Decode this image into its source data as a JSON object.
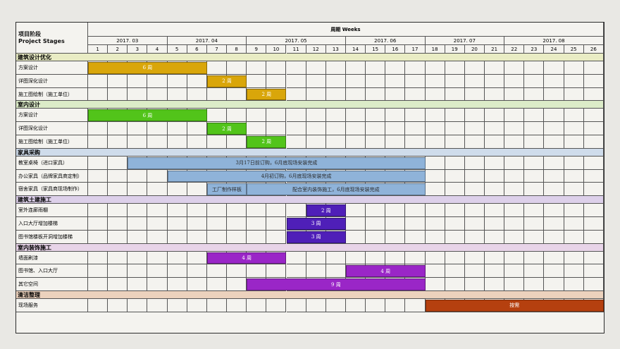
{
  "header": {
    "stage_cn": "项目阶段",
    "stage_en": "Project Stages",
    "period": "周期 Weeks",
    "months": [
      {
        "label": "2017. 03",
        "weeks": 4
      },
      {
        "label": "2017. 04",
        "weeks": 4
      },
      {
        "label": "2017. 05",
        "weeks": 5
      },
      {
        "label": "2017. 06",
        "weeks": 4
      },
      {
        "label": "2017. 07",
        "weeks": 4
      },
      {
        "label": "2017. 08",
        "weeks": 5
      }
    ],
    "week_count": 26
  },
  "colors": {
    "design": "#d9a60a",
    "interior_design": "#52c41a",
    "furniture": "#8fb3d9",
    "civil": "#4f1fb8",
    "decoration": "#9a26c7",
    "cleaning": "#b5400f",
    "sec_design": "#e9ecc4",
    "sec_interior": "#dcecc8",
    "sec_furniture": "#cfdceb",
    "sec_civil": "#ddd0ea",
    "sec_decoration": "#e8d4e8",
    "sec_cleaning": "#ecd2bd"
  },
  "chart_data": {
    "type": "gantt",
    "x_unit": "week",
    "sections": [
      {
        "name": "建筑设计优化",
        "bg": "sec_design",
        "tasks": [
          {
            "name": "方案设计",
            "start": 1,
            "end": 6,
            "label": "6 周",
            "color": "design"
          },
          {
            "name": "详图深化设计",
            "start": 7,
            "end": 8,
            "label": "2 周",
            "color": "design"
          },
          {
            "name": "施工图绘制（施工单位）",
            "start": 9,
            "end": 10,
            "label": "2 周",
            "color": "design"
          }
        ]
      },
      {
        "name": "室内设计",
        "bg": "sec_interior",
        "tasks": [
          {
            "name": "方案设计",
            "start": 1,
            "end": 6,
            "label": "6 周",
            "color": "interior_design"
          },
          {
            "name": "详图深化设计",
            "start": 7,
            "end": 8,
            "label": "2 周",
            "color": "interior_design"
          },
          {
            "name": "施工图绘制（施工单位）",
            "start": 9,
            "end": 10,
            "label": "2 周",
            "color": "interior_design"
          }
        ]
      },
      {
        "name": "家具采购",
        "bg": "sec_furniture",
        "tasks": [
          {
            "name": "教室桌椅（进口家具）",
            "start": 3,
            "end": 17,
            "label": "3月17日前订购，6月底现场安装完成",
            "color": "furniture"
          },
          {
            "name": "办公家具（品牌家具商定制）",
            "start": 5,
            "end": 17,
            "label": "4月初订购，6月底现场安装完成",
            "color": "furniture"
          },
          {
            "name": "宿舍家具（家具商现场制作）",
            "start": 7,
            "end": 8,
            "label": "工厂制作样板",
            "color": "furniture",
            "extra": {
              "start": 9,
              "end": 17,
              "label": "配合室内装饰施工，6月底现场安装完成"
            }
          }
        ]
      },
      {
        "name": "建筑土建施工",
        "bg": "sec_civil",
        "tasks": [
          {
            "name": "室外连廊雨棚",
            "start": 12,
            "end": 13,
            "label": "2 周",
            "color": "civil"
          },
          {
            "name": "入口大厅增加楼梯",
            "start": 11,
            "end": 13,
            "label": "3 周",
            "color": "civil"
          },
          {
            "name": "图书馆楼板开洞增加楼梯",
            "start": 11,
            "end": 13,
            "label": "3 周",
            "color": "civil"
          }
        ]
      },
      {
        "name": "室内装饰施工",
        "bg": "sec_decoration",
        "tasks": [
          {
            "name": "墙面刷漆",
            "start": 7,
            "end": 10,
            "label": "4 周",
            "color": "decoration"
          },
          {
            "name": "图书馆、入口大厅",
            "start": 14,
            "end": 17,
            "label": "4 周",
            "color": "decoration"
          },
          {
            "name": "其它空间",
            "start": 9,
            "end": 17,
            "label": "9 周",
            "color": "decoration"
          }
        ]
      },
      {
        "name": "清洁整理",
        "bg": "sec_cleaning",
        "tasks": [
          {
            "name": "现场服务",
            "start": 18,
            "end": 26,
            "label": "按需",
            "color": "cleaning"
          }
        ]
      }
    ]
  }
}
